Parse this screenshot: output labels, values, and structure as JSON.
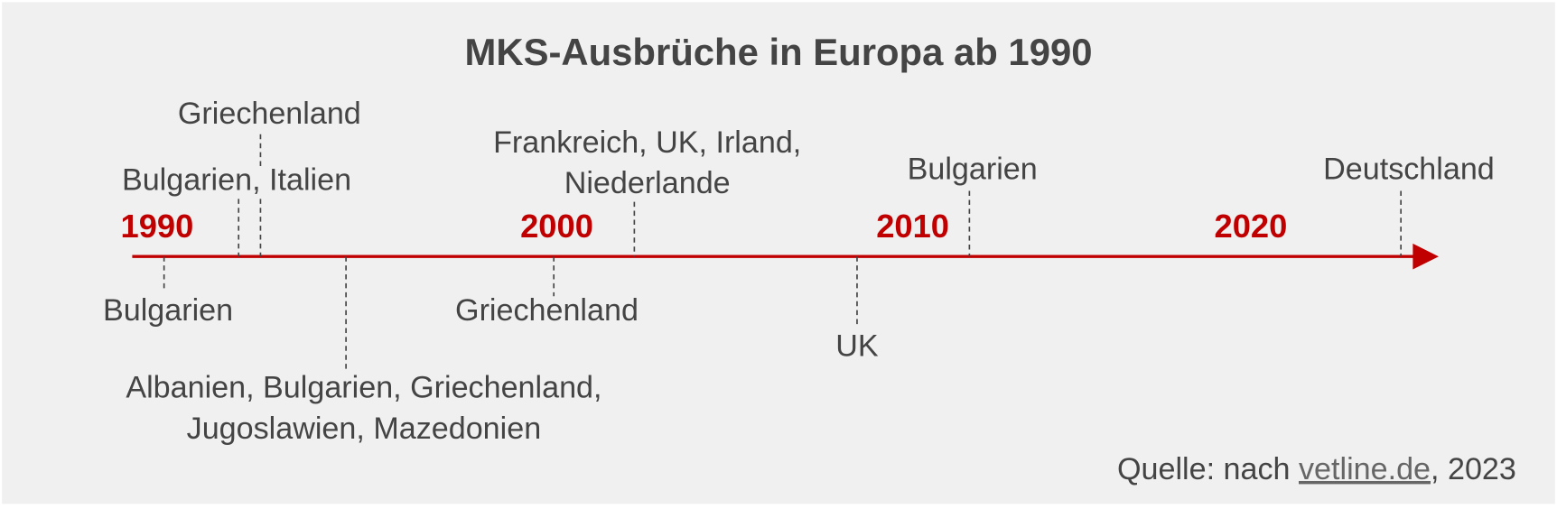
{
  "title": "MKS-Ausbrüche in Europa ab 1990",
  "years": [
    "1990",
    "2000",
    "2010",
    "2020"
  ],
  "events": [
    {
      "lines": [
        "Bulgarien"
      ]
    },
    {
      "lines": [
        "Bulgarien, Italien"
      ]
    },
    {
      "lines": [
        "Griechenland"
      ]
    },
    {
      "lines": [
        "Albanien, Bulgarien, Griechenland,",
        "Jugoslawien, Mazedonien"
      ]
    },
    {
      "lines": [
        "Griechenland"
      ]
    },
    {
      "lines": [
        "Frankreich, UK, Irland,",
        "Niederlande"
      ]
    },
    {
      "lines": [
        "UK"
      ]
    },
    {
      "lines": [
        "Bulgarien"
      ]
    },
    {
      "lines": [
        "Deutschland"
      ]
    }
  ],
  "source": {
    "prefix": "Quelle: nach",
    "link": "vetline.de",
    "suffix": ", 2023"
  }
}
